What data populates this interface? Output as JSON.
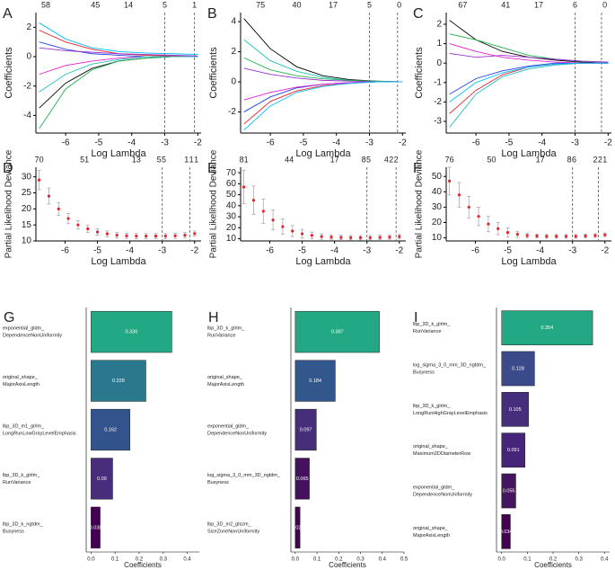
{
  "chart_data": [
    {
      "type": "line",
      "label": "A",
      "xlabel": "Log Lambda",
      "ylabel": "Coefficients",
      "xlim": [
        -6.9,
        -1.9
      ],
      "xticks": [
        -6,
        -5,
        -4,
        -3,
        -2
      ],
      "ylim": [
        -5.2,
        3
      ],
      "yticks": [
        -4,
        -2,
        0,
        2
      ],
      "top_ticks": [
        {
          "value": -6.6,
          "label": "58"
        },
        {
          "value": -5.1,
          "label": "45"
        },
        {
          "value": -4.1,
          "label": "14"
        },
        {
          "value": -3,
          "label": "5"
        },
        {
          "value": -2.1,
          "label": "1"
        }
      ],
      "vlines": [
        -3,
        -2.1
      ],
      "x": [
        -6.8,
        -6,
        -5.2,
        -4.4,
        -3.6,
        -2.8,
        -2.0
      ],
      "series": [
        {
          "color": "#00bfff",
          "values": [
            2.3,
            1.2,
            0.6,
            0.35,
            0.25,
            0.2,
            0.15
          ]
        },
        {
          "color": "#000000",
          "values": [
            -3.5,
            -1.8,
            -0.8,
            -0.3,
            -0.1,
            0,
            0
          ]
        },
        {
          "color": "#22b14c",
          "values": [
            -4.9,
            -2.2,
            -0.9,
            -0.3,
            -0.1,
            0,
            0
          ]
        },
        {
          "color": "#e8202a",
          "values": [
            1.8,
            1.0,
            0.5,
            0.2,
            0.1,
            0.05,
            0
          ]
        },
        {
          "color": "#e020d0",
          "values": [
            -1.2,
            -0.6,
            -0.3,
            -0.1,
            0,
            0,
            0
          ]
        },
        {
          "color": "#2040e0",
          "values": [
            1.0,
            0.5,
            0.2,
            0.1,
            0,
            0,
            0
          ]
        },
        {
          "color": "#20c0c0",
          "values": [
            -2.4,
            -1.2,
            -0.5,
            -0.2,
            0,
            0,
            0
          ]
        },
        {
          "color": "#9933cc",
          "values": [
            0.6,
            0.4,
            0.3,
            0.2,
            0.15,
            0.1,
            0.05
          ]
        }
      ]
    },
    {
      "type": "line",
      "label": "B",
      "xlabel": "Log Lambda",
      "ylabel": "Coefficients",
      "xlim": [
        -6.9,
        -1.9
      ],
      "xticks": [
        -6,
        -5,
        -4,
        -3,
        -2
      ],
      "ylim": [
        -3.4,
        4.6
      ],
      "yticks": [
        -2,
        0,
        2,
        4
      ],
      "top_ticks": [
        {
          "value": -6.3,
          "label": "75"
        },
        {
          "value": -5.2,
          "label": "40"
        },
        {
          "value": -4.1,
          "label": "17"
        },
        {
          "value": -3,
          "label": "5"
        },
        {
          "value": -2.1,
          "label": "0"
        }
      ],
      "vlines": [
        -3,
        -2.15
      ],
      "x": [
        -6.8,
        -6,
        -5.2,
        -4.4,
        -3.6,
        -2.8,
        -2.0
      ],
      "series": [
        {
          "color": "#000000",
          "values": [
            4.2,
            2.2,
            1.0,
            0.4,
            0.15,
            0.05,
            0
          ]
        },
        {
          "color": "#20c0c0",
          "values": [
            2.8,
            1.4,
            0.7,
            0.3,
            0.1,
            0,
            0
          ]
        },
        {
          "color": "#e8202a",
          "values": [
            -2.8,
            -1.3,
            -0.6,
            -0.25,
            -0.1,
            0,
            0
          ]
        },
        {
          "color": "#2040e0",
          "values": [
            -2.0,
            -1.0,
            -0.4,
            -0.15,
            -0.05,
            0,
            0
          ]
        },
        {
          "color": "#22b14c",
          "values": [
            1.6,
            0.8,
            0.4,
            0.2,
            0.1,
            0.05,
            0
          ]
        },
        {
          "color": "#e020d0",
          "values": [
            -1.2,
            -0.7,
            -0.35,
            -0.15,
            -0.05,
            0,
            0
          ]
        },
        {
          "color": "#9933cc",
          "values": [
            0.9,
            0.5,
            0.25,
            0.1,
            0.05,
            0,
            0
          ]
        },
        {
          "color": "#00bfff",
          "values": [
            -3.2,
            -1.6,
            -0.7,
            -0.3,
            -0.1,
            0,
            0
          ]
        }
      ]
    },
    {
      "type": "line",
      "label": "C",
      "xlabel": "Log Lambda",
      "ylabel": "Coefficients",
      "xlim": [
        -6.9,
        -1.9
      ],
      "xticks": [
        -6,
        -5,
        -4,
        -3,
        -2
      ],
      "ylim": [
        -3.6,
        2.6
      ],
      "yticks": [
        -3,
        -2,
        -1,
        0,
        1,
        2
      ],
      "top_ticks": [
        {
          "value": -6.4,
          "label": "67"
        },
        {
          "value": -5.1,
          "label": "41"
        },
        {
          "value": -4.1,
          "label": "17"
        },
        {
          "value": -3,
          "label": "6"
        },
        {
          "value": -2.1,
          "label": "0"
        }
      ],
      "vlines": [
        -3,
        -2.2
      ],
      "x": [
        -6.8,
        -6,
        -5.2,
        -4.4,
        -3.6,
        -2.8,
        -2.0
      ],
      "series": [
        {
          "color": "#000000",
          "values": [
            2.2,
            1.2,
            0.6,
            0.3,
            0.15,
            0.05,
            0
          ]
        },
        {
          "color": "#20c0c0",
          "values": [
            -3.3,
            -1.6,
            -0.7,
            -0.3,
            -0.1,
            0,
            0
          ]
        },
        {
          "color": "#22b14c",
          "values": [
            1.5,
            1.2,
            0.8,
            0.4,
            0.2,
            0.1,
            0.05
          ]
        },
        {
          "color": "#e8202a",
          "values": [
            -2.6,
            -1.4,
            -0.6,
            -0.2,
            -0.05,
            0,
            0
          ]
        },
        {
          "color": "#2040e0",
          "values": [
            -1.6,
            -0.8,
            -0.4,
            -0.15,
            0,
            0,
            0
          ]
        },
        {
          "color": "#e020d0",
          "values": [
            1.0,
            0.6,
            0.3,
            0.15,
            0.05,
            0,
            0
          ]
        },
        {
          "color": "#9933cc",
          "values": [
            0.5,
            0.3,
            0.4,
            0.3,
            0.2,
            0.1,
            0.05
          ]
        },
        {
          "color": "#00bfff",
          "values": [
            -2.0,
            -1.0,
            -0.5,
            -0.2,
            -0.05,
            0,
            0
          ]
        }
      ]
    },
    {
      "type": "errorbar",
      "label": "D",
      "xlabel": "Log Lambda",
      "ylabel": "Partial Likelihood Deviance",
      "xlim": [
        -6.9,
        -1.8
      ],
      "xticks": [
        -6,
        -5,
        -4,
        -3,
        -2
      ],
      "ylim": [
        10,
        33
      ],
      "yticks": [
        10,
        15,
        20,
        25,
        30
      ],
      "top_ticks": [
        {
          "value": -6.8,
          "label": "70"
        },
        {
          "value": -5.4,
          "label": "51"
        },
        {
          "value": -3.8,
          "label": "13"
        },
        {
          "value": -3.1,
          "label": "5"
        },
        {
          "value": -2.95,
          "label": "5"
        },
        {
          "value": -2.25,
          "label": "1"
        },
        {
          "value": -2.1,
          "label": "1"
        },
        {
          "value": -1.95,
          "label": "1"
        }
      ],
      "vlines": [
        -3,
        -2.15
      ],
      "x": [
        -6.8,
        -6.5,
        -6.2,
        -5.9,
        -5.6,
        -5.3,
        -5.0,
        -4.7,
        -4.4,
        -4.1,
        -3.8,
        -3.5,
        -3.2,
        -2.9,
        -2.6,
        -2.3,
        -2.0
      ],
      "values": [
        29,
        24,
        20,
        17,
        15,
        13.8,
        12.8,
        12.2,
        11.8,
        11.6,
        11.5,
        11.5,
        11.5,
        11.5,
        11.6,
        11.8,
        12.3
      ],
      "errors": [
        3,
        2.5,
        2,
        1.6,
        1.3,
        1.1,
        1,
        0.9,
        0.8,
        0.8,
        0.8,
        0.8,
        0.8,
        0.8,
        0.8,
        0.8,
        0.8
      ]
    },
    {
      "type": "errorbar",
      "label": "E",
      "xlabel": "Log Lambda",
      "ylabel": "Partial Likelihood Deviance",
      "xlim": [
        -6.9,
        -1.8
      ],
      "xticks": [
        -6,
        -5,
        -4,
        -3,
        -2
      ],
      "ylim": [
        8,
        75
      ],
      "yticks": [
        10,
        20,
        30,
        40,
        50,
        60,
        70
      ],
      "top_ticks": [
        {
          "value": -6.8,
          "label": "81"
        },
        {
          "value": -5.4,
          "label": "44"
        },
        {
          "value": -4.0,
          "label": "17"
        },
        {
          "value": -3.1,
          "label": "8"
        },
        {
          "value": -2.95,
          "label": "5"
        },
        {
          "value": -2.4,
          "label": "4"
        },
        {
          "value": -2.25,
          "label": "2"
        },
        {
          "value": -2.1,
          "label": "2"
        }
      ],
      "vlines": [
        -3,
        -2.1
      ],
      "x": [
        -6.8,
        -6.5,
        -6.2,
        -5.9,
        -5.6,
        -5.3,
        -5.0,
        -4.7,
        -4.4,
        -4.1,
        -3.8,
        -3.5,
        -3.2,
        -2.9,
        -2.6,
        -2.3,
        -2.0
      ],
      "values": [
        57,
        45,
        35,
        27,
        21,
        17,
        14.5,
        13,
        12,
        11.5,
        11.2,
        11,
        11,
        11,
        11.2,
        11.5,
        12
      ],
      "errors": [
        15,
        13,
        11,
        9,
        7,
        5,
        4,
        3,
        2.5,
        2,
        2,
        2,
        2,
        2,
        2,
        2,
        2
      ]
    },
    {
      "type": "errorbar",
      "label": "F",
      "xlabel": "Log Lambda",
      "ylabel": "Partial Likelihood Deviance",
      "xlim": [
        -6.9,
        -1.8
      ],
      "xticks": [
        -6,
        -5,
        -4,
        -3,
        -2
      ],
      "ylim": [
        8,
        56
      ],
      "yticks": [
        10,
        20,
        30,
        40,
        50
      ],
      "top_ticks": [
        {
          "value": -6.8,
          "label": "76"
        },
        {
          "value": -5.5,
          "label": "50"
        },
        {
          "value": -4.0,
          "label": "17"
        },
        {
          "value": -3.1,
          "label": "8"
        },
        {
          "value": -2.95,
          "label": "6"
        },
        {
          "value": -2.3,
          "label": "2"
        },
        {
          "value": -2.15,
          "label": "2"
        },
        {
          "value": -2.0,
          "label": "1"
        }
      ],
      "vlines": [
        -3,
        -2.2
      ],
      "x": [
        -6.8,
        -6.5,
        -6.2,
        -5.9,
        -5.6,
        -5.3,
        -5.0,
        -4.7,
        -4.4,
        -4.1,
        -3.8,
        -3.5,
        -3.2,
        -2.9,
        -2.6,
        -2.3,
        -2.0
      ],
      "values": [
        47,
        38,
        30,
        24,
        19,
        16,
        13.5,
        12.3,
        11.5,
        11.2,
        11,
        11,
        11,
        11,
        11.2,
        11.5,
        12
      ],
      "errors": [
        9,
        8,
        7,
        6,
        5,
        4,
        3,
        2,
        1.5,
        1.2,
        1.2,
        1.2,
        1.2,
        1.2,
        1.2,
        1.2,
        1.2
      ]
    },
    {
      "type": "barh",
      "label": "G",
      "xlabel": "Coefficients",
      "xlim": [
        -0.02,
        0.45
      ],
      "xticks": [
        {
          "value": 0,
          "label": "0.0"
        },
        0.1,
        0.2,
        0.3,
        0.4
      ],
      "categories": [
        [
          "exponential_gldm_",
          "DependenceNonUniformity"
        ],
        [
          "original_shape_",
          "MajorAxisLength"
        ],
        [
          "lbp_3D_m1_glrlm_",
          "LongRunLowGrayLevelEmphasis"
        ],
        [
          "lbp_3D_k_glrlm_",
          "RunVariance"
        ],
        [
          "lbp_3D_k_ngtdm_",
          "Busyness"
        ]
      ],
      "values": [
        0.336,
        0.228,
        0.162,
        0.09,
        0.038
      ],
      "colors": [
        "#23a884",
        "#2a788e",
        "#33538d",
        "#472d7b",
        "#440154"
      ]
    },
    {
      "type": "barh",
      "label": "H",
      "xlabel": "Coefficients",
      "xlim": [
        -0.02,
        0.5
      ],
      "xticks": [
        {
          "value": 0,
          "label": "0.0"
        },
        0.1,
        0.2,
        0.3,
        0.4,
        0.5
      ],
      "categories": [
        [
          "lbp_3D_k_glrlm_",
          "RunVariance"
        ],
        [
          "original_shape_",
          "MajorAxisLength"
        ],
        [
          "exponential_gldm_",
          "DependenceNonUniformity"
        ],
        [
          "log_sigma_3_0_mm_3D_ngtdm_",
          "Busyness"
        ],
        [
          "lbp_3D_m2_glszm_",
          "SizeZoneNonUniformity"
        ]
      ],
      "values": [
        0.387,
        0.184,
        0.097,
        0.065,
        0.022
      ],
      "colors": [
        "#23a884",
        "#31578c",
        "#462e7b",
        "#45115f",
        "#440154"
      ]
    },
    {
      "type": "barh",
      "label": "I",
      "xlabel": "Coefficients",
      "xlim": [
        -0.02,
        0.42
      ],
      "xticks": [
        {
          "value": 0,
          "label": "0.0"
        },
        0.1,
        0.2,
        0.3,
        0.4
      ],
      "categories": [
        [
          "lbp_3D_k_glrlm_",
          "RunVariance"
        ],
        [
          "log_sigma_3_0_mm_3D_ngtdm_",
          "Busyness"
        ],
        [
          "lbp_3D_k_glrlm_",
          "LongRunHighGrayLevelEmphasis"
        ],
        [
          "original_shape_",
          "Maximum2DDiameterRow"
        ],
        [
          "exponential_gldm_",
          "DependenceNonUniformity"
        ],
        [
          "original_shape_",
          "MajorAxisLength"
        ]
      ],
      "values": [
        0.354,
        0.128,
        0.105,
        0.091,
        0.055,
        0.034
      ],
      "colors": [
        "#23a884",
        "#3a4a8b",
        "#452f7c",
        "#46247a",
        "#45155f",
        "#440154"
      ]
    }
  ]
}
